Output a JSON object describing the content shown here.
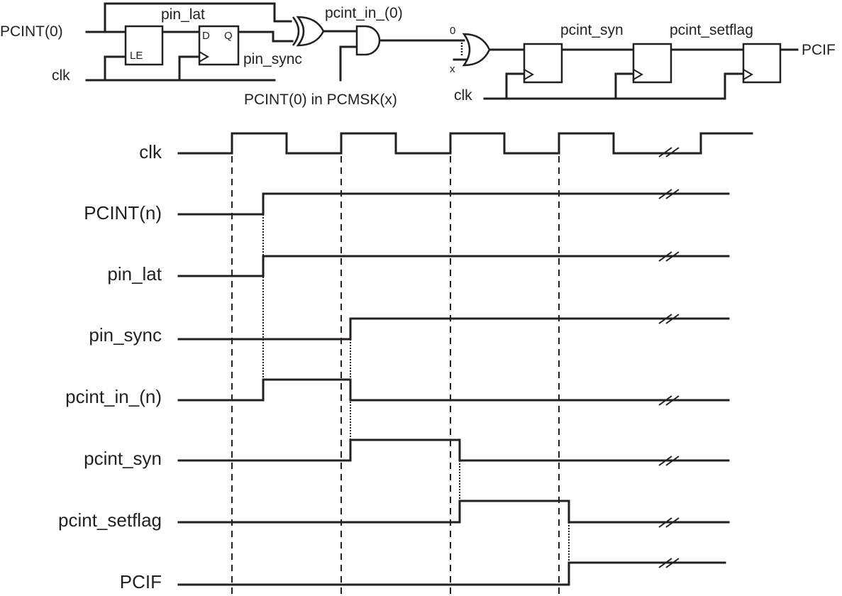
{
  "schematic": {
    "labels": {
      "pcint0_in": "PCINT(0)",
      "clk_left": "clk",
      "pin_lat": "pin_lat",
      "latch_le": "LE",
      "ff_d": "D",
      "ff_q": "Q",
      "pin_sync": "pin_sync",
      "pcint_in0": "pcint_in_(0)",
      "pcmsk": "PCINT(0) in PCMSK(x)",
      "or_in_0": "0",
      "or_in_x": "x",
      "clk_right": "clk",
      "pcint_syn": "pcint_syn",
      "pcint_setflag": "pcint_setflag",
      "pcif": "PCIF"
    }
  },
  "timing": {
    "signals": [
      {
        "name": "clk"
      },
      {
        "name": "PCINT(n)"
      },
      {
        "name": "pin_lat"
      },
      {
        "name": "pin_sync"
      },
      {
        "name": "pcint_in_(n)"
      },
      {
        "name": "pcint_syn"
      },
      {
        "name": "pcint_setflag"
      },
      {
        "name": "PCIF"
      }
    ]
  }
}
